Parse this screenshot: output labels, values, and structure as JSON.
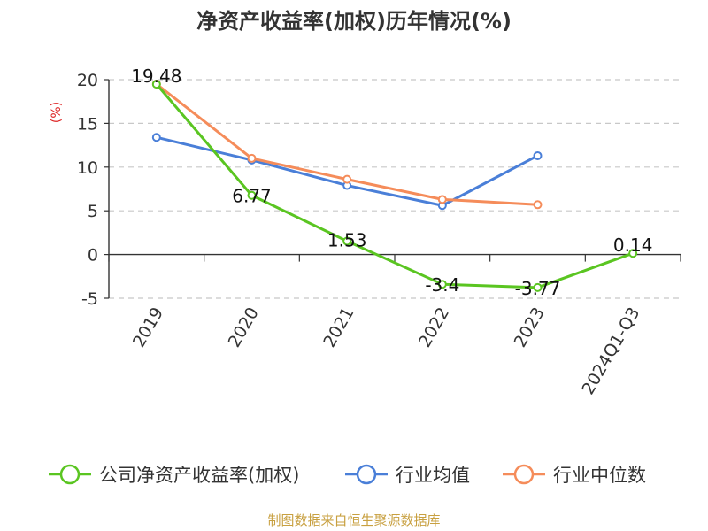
{
  "chart_data": {
    "type": "line",
    "title": "净资产收益率(加权)历年情况(%)",
    "ylabel": "(%)",
    "xlabel": "",
    "categories": [
      "2019",
      "2020",
      "2021",
      "2022",
      "2023",
      "2024Q1-Q3"
    ],
    "ylim": [
      -5,
      20
    ],
    "yticks": [
      -5,
      0,
      5,
      10,
      15,
      20
    ],
    "grid": true,
    "legend_position": "bottom",
    "series": [
      {
        "name": "公司净资产收益率(加权)",
        "color": "#5ac521",
        "values": [
          19.48,
          6.77,
          1.53,
          -3.4,
          -3.77,
          0.14
        ],
        "labels": [
          "19.48",
          "6.77",
          "1.53",
          "-3.4",
          "-3.77",
          "0.14"
        ]
      },
      {
        "name": "行业均值",
        "color": "#4a7fd8",
        "values": [
          13.4,
          10.8,
          7.9,
          5.6,
          11.3,
          null
        ]
      },
      {
        "name": "行业中位数",
        "color": "#f58c5a",
        "values": [
          19.5,
          11.0,
          8.6,
          6.3,
          5.7,
          null
        ]
      }
    ],
    "source": "制图数据来自恒生聚源数据库",
    "source_color": "#c8a040",
    "ylabel_color": "#dd2222"
  }
}
